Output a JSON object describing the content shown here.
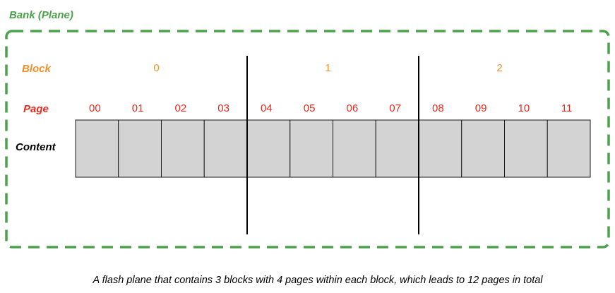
{
  "bank": {
    "label": "Bank (Plane)",
    "color": "#4ca24a"
  },
  "rows": {
    "block_label": "Block",
    "page_label": "Page",
    "content_label": "Content"
  },
  "blocks": [
    "0",
    "1",
    "2"
  ],
  "pages": [
    "00",
    "01",
    "02",
    "03",
    "04",
    "05",
    "06",
    "07",
    "08",
    "09",
    "10",
    "11"
  ],
  "colors": {
    "block": "#f0902e",
    "page": "#e8291c",
    "cell_fill": "#d3d3d3",
    "cell_stroke": "#1a1a1a",
    "divider": "#000000"
  },
  "caption": "A flash plane that contains 3 blocks with 4 pages within each block, which leads to 12 pages in total"
}
